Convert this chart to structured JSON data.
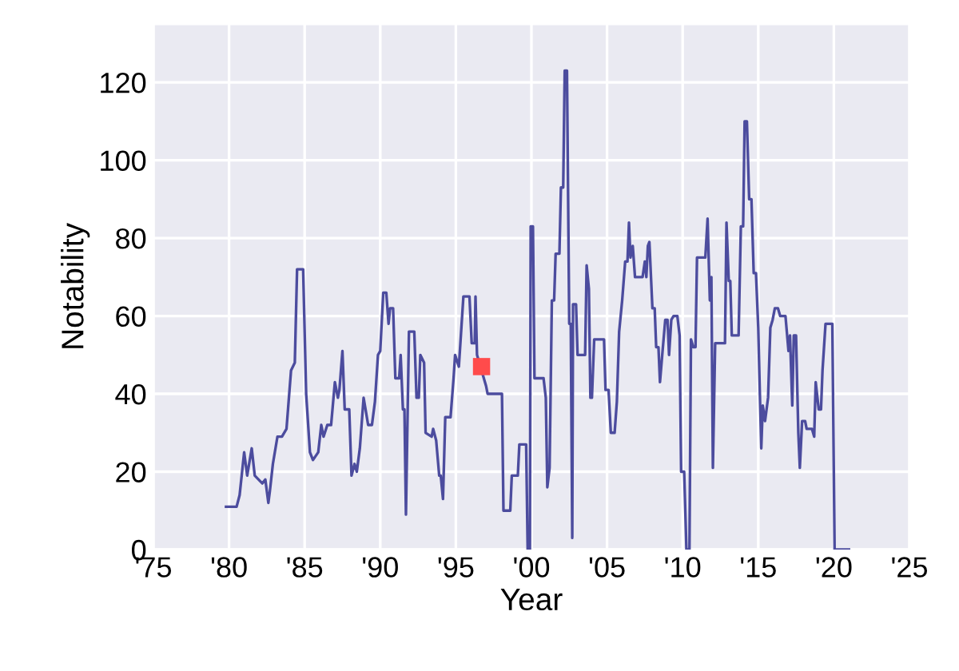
{
  "chart_data": {
    "type": "line",
    "xlabel": "Year",
    "ylabel": "Notability",
    "xlim": [
      1975,
      2025
    ],
    "xticks": [
      {
        "value": 1975,
        "label": "'75"
      },
      {
        "value": 1980,
        "label": "'80"
      },
      {
        "value": 1985,
        "label": "'85"
      },
      {
        "value": 1990,
        "label": "'90"
      },
      {
        "value": 1995,
        "label": "'95"
      },
      {
        "value": 2000,
        "label": "'00"
      },
      {
        "value": 2005,
        "label": "'05"
      },
      {
        "value": 2010,
        "label": "'10"
      },
      {
        "value": 2015,
        "label": "'15"
      },
      {
        "value": 2020,
        "label": "'20"
      },
      {
        "value": 2025,
        "label": "'25"
      }
    ],
    "ylim": [
      0,
      135
    ],
    "yticks": [
      0,
      20,
      40,
      60,
      80,
      100,
      120
    ],
    "grid": true,
    "line_style": "solid",
    "series": [
      {
        "color": "#4c4c9e",
        "marker": "none",
        "x": [
          1979.8,
          1980.5,
          1980.7,
          1981.0,
          1981.2,
          1981.5,
          1981.7,
          1982.2,
          1982.4,
          1982.6,
          1982.7,
          1982.9,
          1983.2,
          1983.5,
          1983.8,
          1984.0,
          1984.1,
          1984.35,
          1984.5,
          1984.9,
          1985.1,
          1985.35,
          1985.55,
          1985.9,
          1986.1,
          1986.25,
          1986.5,
          1986.75,
          1987.0,
          1987.2,
          1987.3,
          1987.5,
          1987.65,
          1987.95,
          1988.1,
          1988.3,
          1988.45,
          1988.65,
          1988.9,
          1989.2,
          1989.45,
          1989.65,
          1989.85,
          1990.0,
          1990.2,
          1990.4,
          1990.55,
          1990.65,
          1990.85,
          1991.0,
          1991.25,
          1991.35,
          1991.5,
          1991.6,
          1991.7,
          1991.9,
          1992.25,
          1992.4,
          1992.55,
          1992.65,
          1992.9,
          1993.0,
          1993.4,
          1993.5,
          1993.7,
          1993.9,
          1994.0,
          1994.15,
          1994.3,
          1994.65,
          1994.85,
          1994.95,
          1995.2,
          1995.3,
          1995.5,
          1995.9,
          1996.05,
          1996.25,
          1996.3,
          1996.4,
          1997.0,
          1997.1,
          1998.05,
          1998.15,
          1998.6,
          1998.7,
          1999.1,
          1999.2,
          1999.65,
          1999.75,
          1999.9,
          1999.95,
          2000.1,
          2000.2,
          2000.8,
          2000.95,
          2001.05,
          2001.2,
          2001.35,
          2001.5,
          2001.6,
          2001.85,
          2001.95,
          2002.1,
          2002.2,
          2002.35,
          2002.5,
          2002.6,
          2002.7,
          2002.75,
          2002.95,
          2003.05,
          2003.55,
          2003.65,
          2003.8,
          2003.9,
          2004.0,
          2004.15,
          2004.8,
          2004.9,
          2005.1,
          2005.25,
          2005.5,
          2005.65,
          2005.8,
          2006.0,
          2006.2,
          2006.35,
          2006.45,
          2006.55,
          2006.7,
          2006.85,
          2007.35,
          2007.5,
          2007.6,
          2007.7,
          2007.8,
          2008.0,
          2008.15,
          2008.25,
          2008.4,
          2008.5,
          2008.65,
          2008.85,
          2009.0,
          2009.1,
          2009.25,
          2009.4,
          2009.65,
          2009.8,
          2009.9,
          2010.1,
          2010.25,
          2010.45,
          2010.55,
          2010.7,
          2010.85,
          2010.95,
          2011.5,
          2011.65,
          2011.8,
          2011.9,
          2012.0,
          2012.15,
          2012.8,
          2012.9,
          2013.05,
          2013.15,
          2013.25,
          2013.7,
          2013.85,
          2014.0,
          2014.1,
          2014.25,
          2014.4,
          2014.55,
          2014.7,
          2014.85,
          2015.0,
          2015.1,
          2015.2,
          2015.3,
          2015.45,
          2015.65,
          2015.8,
          2015.95,
          2016.1,
          2016.3,
          2016.45,
          2016.8,
          2017.0,
          2017.1,
          2017.25,
          2017.35,
          2017.5,
          2017.65,
          2017.75,
          2017.9,
          2018.1,
          2018.2,
          2018.55,
          2018.7,
          2018.8,
          2019.0,
          2019.15,
          2019.25,
          2019.45,
          2019.9,
          2020.05,
          2021.0
        ],
        "values": [
          11,
          11,
          14,
          25,
          19,
          26,
          19,
          17,
          18,
          12,
          15,
          22,
          29,
          29,
          31,
          41,
          46,
          48,
          72,
          72,
          40,
          25,
          23,
          25,
          32,
          29,
          32,
          32,
          43,
          39,
          41,
          51,
          36,
          36,
          19,
          22,
          20,
          26,
          39,
          32,
          32,
          38,
          50,
          51,
          66,
          66,
          58,
          62,
          62,
          44,
          44,
          50,
          36,
          36,
          9,
          56,
          56,
          39,
          39,
          50,
          48,
          30,
          29,
          31,
          28,
          19,
          19,
          13,
          34,
          34,
          44,
          50,
          47,
          53,
          65,
          65,
          53,
          53,
          65,
          50,
          42,
          40,
          40,
          10,
          10,
          19,
          19,
          27,
          27,
          0,
          0,
          83,
          83,
          44,
          44,
          39,
          16,
          21,
          64,
          64,
          76,
          76,
          93,
          93,
          123,
          123,
          58,
          58,
          3,
          63,
          63,
          50,
          50,
          73,
          67,
          39,
          39,
          54,
          54,
          41,
          41,
          30,
          30,
          38,
          56,
          64,
          74,
          74,
          84,
          75,
          78,
          70,
          70,
          74,
          70,
          78,
          79,
          62,
          62,
          52,
          52,
          43,
          50,
          59,
          59,
          50,
          59,
          60,
          60,
          55,
          20,
          20,
          0,
          0,
          54,
          52,
          52,
          75,
          75,
          85,
          64,
          70,
          21,
          53,
          53,
          84,
          69,
          69,
          55,
          55,
          83,
          83,
          110,
          110,
          90,
          90,
          71,
          71,
          57,
          41,
          26,
          37,
          33,
          39,
          57,
          59,
          62,
          62,
          60,
          60,
          51,
          55,
          37,
          55,
          55,
          30,
          21,
          33,
          33,
          31,
          31,
          29,
          43,
          36,
          36,
          46,
          58,
          58,
          0,
          0
        ]
      },
      {
        "type": "scatter",
        "color": "#ff4b4b",
        "marker": "square",
        "x": [
          1996.7
        ],
        "values": [
          47
        ]
      }
    ]
  }
}
